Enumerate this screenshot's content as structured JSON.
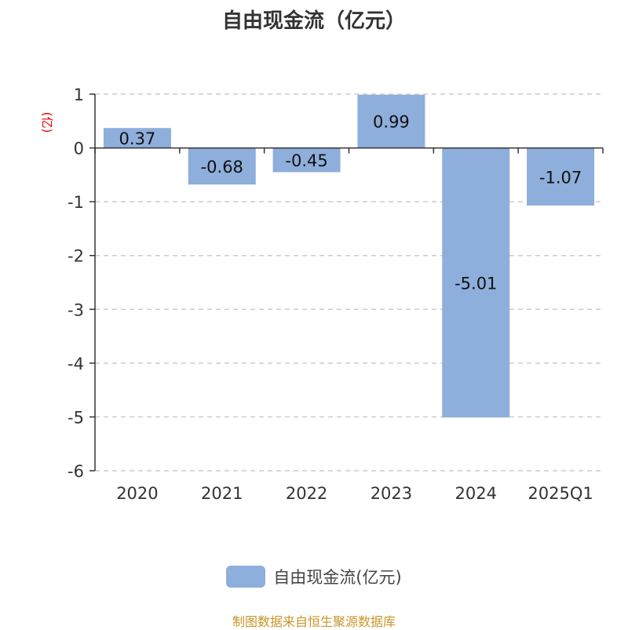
{
  "chart_data": {
    "type": "bar",
    "title": "自由现金流（亿元）",
    "ylabel": "(亿)",
    "categories": [
      "2020",
      "2021",
      "2022",
      "2023",
      "2024",
      "2025Q1"
    ],
    "series": [
      {
        "name": "自由现金流(亿元)",
        "values": [
          0.37,
          -0.68,
          -0.45,
          0.99,
          -5.01,
          -1.07
        ]
      }
    ],
    "data_labels": [
      "0.37",
      "-0.68",
      "-0.45",
      "0.99",
      "-5.01",
      "-1.07"
    ],
    "ylim": [
      -6,
      1
    ],
    "yticks": [
      1,
      0,
      -1,
      -2,
      -3,
      -4,
      -5,
      -6
    ],
    "grid": true,
    "legend_position": "bottom",
    "colors": {
      "bar": "#8eaedb",
      "ylabel": "#e00000",
      "footer": "#c8962a"
    }
  },
  "footer": "制图数据来自恒生聚源数据库"
}
